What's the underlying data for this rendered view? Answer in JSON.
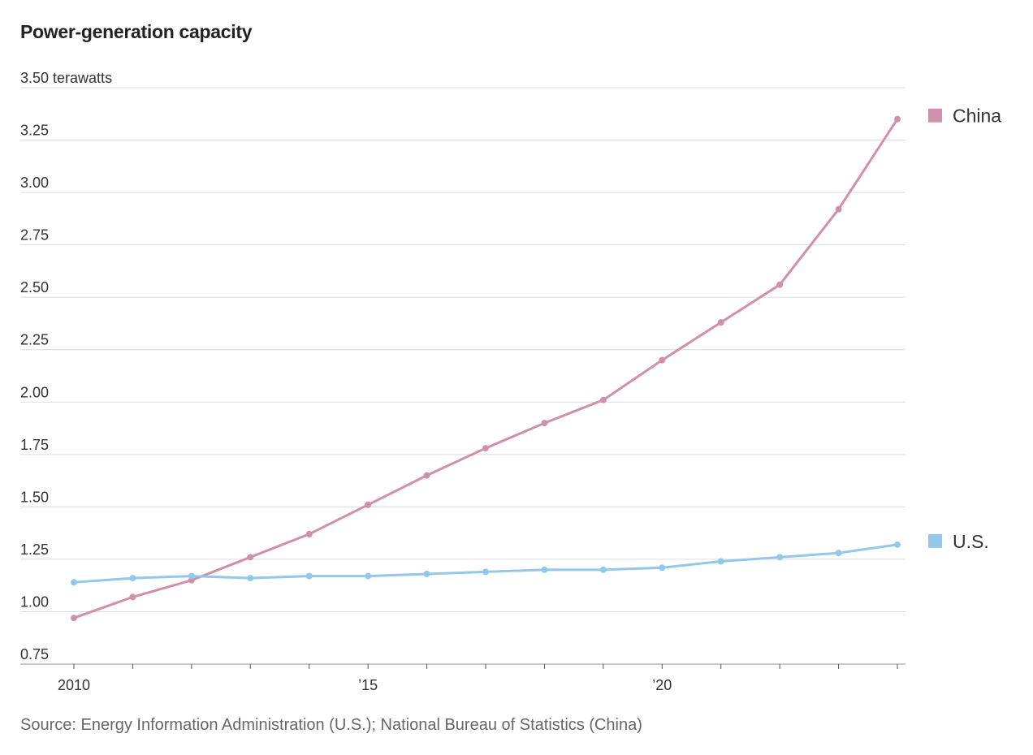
{
  "chart_data": {
    "type": "line",
    "title": "Power-generation capacity",
    "ylabel": "terawatts",
    "ylim": [
      0.75,
      3.5
    ],
    "yticks": [
      0.75,
      1.0,
      1.25,
      1.5,
      1.75,
      2.0,
      2.25,
      2.5,
      2.75,
      3.0,
      3.25,
      3.5
    ],
    "ytick_labels": [
      "0.75",
      "1.00",
      "1.25",
      "1.50",
      "1.75",
      "2.00",
      "2.25",
      "2.50",
      "2.75",
      "3.00",
      "3.25",
      "3.50 terawatts"
    ],
    "x": [
      2010,
      2011,
      2012,
      2013,
      2014,
      2015,
      2016,
      2017,
      2018,
      2019,
      2020,
      2021,
      2022,
      2023,
      2024
    ],
    "xtick_labels": [
      {
        "x": 2010,
        "label": "2010"
      },
      {
        "x": 2015,
        "label": "’15"
      },
      {
        "x": 2020,
        "label": "’20"
      }
    ],
    "grid": true,
    "legend": "right",
    "series": [
      {
        "name": "China",
        "color": "#d08fab",
        "values": [
          0.97,
          1.07,
          1.15,
          1.26,
          1.37,
          1.51,
          1.65,
          1.78,
          1.9,
          2.01,
          2.2,
          2.38,
          2.56,
          2.92,
          3.35
        ]
      },
      {
        "name": "U.S.",
        "color": "#93c8ea",
        "values": [
          1.14,
          1.16,
          1.17,
          1.16,
          1.17,
          1.17,
          1.18,
          1.19,
          1.2,
          1.2,
          1.21,
          1.24,
          1.26,
          1.28,
          1.32
        ]
      }
    ],
    "source": "Source: Energy Information Administration (U.S.); National Bureau of Statistics (China)"
  }
}
